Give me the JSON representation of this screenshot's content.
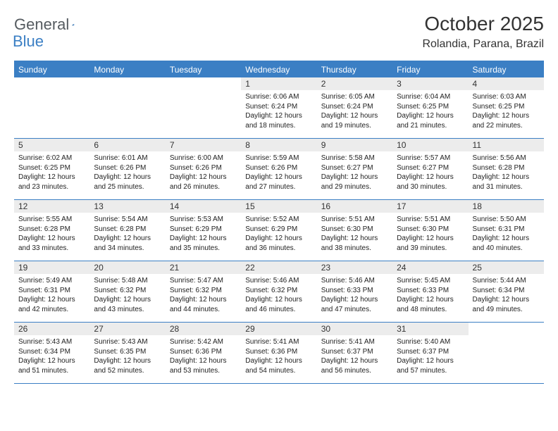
{
  "logo": {
    "part1": "General",
    "part2": "Blue"
  },
  "title": "October 2025",
  "location": "Rolandia, Parana, Brazil",
  "colors": {
    "accent": "#3b7fc4",
    "daynum_bg": "#ececec",
    "text": "#333333",
    "body_text": "#222222",
    "logo_gray": "#555b60",
    "background": "#ffffff"
  },
  "typography": {
    "title_fontsize": 28,
    "location_fontsize": 16,
    "dayname_fontsize": 12,
    "daynum_fontsize": 12,
    "body_fontsize": 10
  },
  "daynames": [
    "Sunday",
    "Monday",
    "Tuesday",
    "Wednesday",
    "Thursday",
    "Friday",
    "Saturday"
  ],
  "weeks": [
    [
      {
        "blank": true
      },
      {
        "blank": true
      },
      {
        "blank": true
      },
      {
        "day": "1",
        "sunrise": "Sunrise: 6:06 AM",
        "sunset": "Sunset: 6:24 PM",
        "daylight1": "Daylight: 12 hours",
        "daylight2": "and 18 minutes."
      },
      {
        "day": "2",
        "sunrise": "Sunrise: 6:05 AM",
        "sunset": "Sunset: 6:24 PM",
        "daylight1": "Daylight: 12 hours",
        "daylight2": "and 19 minutes."
      },
      {
        "day": "3",
        "sunrise": "Sunrise: 6:04 AM",
        "sunset": "Sunset: 6:25 PM",
        "daylight1": "Daylight: 12 hours",
        "daylight2": "and 21 minutes."
      },
      {
        "day": "4",
        "sunrise": "Sunrise: 6:03 AM",
        "sunset": "Sunset: 6:25 PM",
        "daylight1": "Daylight: 12 hours",
        "daylight2": "and 22 minutes."
      }
    ],
    [
      {
        "day": "5",
        "sunrise": "Sunrise: 6:02 AM",
        "sunset": "Sunset: 6:25 PM",
        "daylight1": "Daylight: 12 hours",
        "daylight2": "and 23 minutes."
      },
      {
        "day": "6",
        "sunrise": "Sunrise: 6:01 AM",
        "sunset": "Sunset: 6:26 PM",
        "daylight1": "Daylight: 12 hours",
        "daylight2": "and 25 minutes."
      },
      {
        "day": "7",
        "sunrise": "Sunrise: 6:00 AM",
        "sunset": "Sunset: 6:26 PM",
        "daylight1": "Daylight: 12 hours",
        "daylight2": "and 26 minutes."
      },
      {
        "day": "8",
        "sunrise": "Sunrise: 5:59 AM",
        "sunset": "Sunset: 6:26 PM",
        "daylight1": "Daylight: 12 hours",
        "daylight2": "and 27 minutes."
      },
      {
        "day": "9",
        "sunrise": "Sunrise: 5:58 AM",
        "sunset": "Sunset: 6:27 PM",
        "daylight1": "Daylight: 12 hours",
        "daylight2": "and 29 minutes."
      },
      {
        "day": "10",
        "sunrise": "Sunrise: 5:57 AM",
        "sunset": "Sunset: 6:27 PM",
        "daylight1": "Daylight: 12 hours",
        "daylight2": "and 30 minutes."
      },
      {
        "day": "11",
        "sunrise": "Sunrise: 5:56 AM",
        "sunset": "Sunset: 6:28 PM",
        "daylight1": "Daylight: 12 hours",
        "daylight2": "and 31 minutes."
      }
    ],
    [
      {
        "day": "12",
        "sunrise": "Sunrise: 5:55 AM",
        "sunset": "Sunset: 6:28 PM",
        "daylight1": "Daylight: 12 hours",
        "daylight2": "and 33 minutes."
      },
      {
        "day": "13",
        "sunrise": "Sunrise: 5:54 AM",
        "sunset": "Sunset: 6:28 PM",
        "daylight1": "Daylight: 12 hours",
        "daylight2": "and 34 minutes."
      },
      {
        "day": "14",
        "sunrise": "Sunrise: 5:53 AM",
        "sunset": "Sunset: 6:29 PM",
        "daylight1": "Daylight: 12 hours",
        "daylight2": "and 35 minutes."
      },
      {
        "day": "15",
        "sunrise": "Sunrise: 5:52 AM",
        "sunset": "Sunset: 6:29 PM",
        "daylight1": "Daylight: 12 hours",
        "daylight2": "and 36 minutes."
      },
      {
        "day": "16",
        "sunrise": "Sunrise: 5:51 AM",
        "sunset": "Sunset: 6:30 PM",
        "daylight1": "Daylight: 12 hours",
        "daylight2": "and 38 minutes."
      },
      {
        "day": "17",
        "sunrise": "Sunrise: 5:51 AM",
        "sunset": "Sunset: 6:30 PM",
        "daylight1": "Daylight: 12 hours",
        "daylight2": "and 39 minutes."
      },
      {
        "day": "18",
        "sunrise": "Sunrise: 5:50 AM",
        "sunset": "Sunset: 6:31 PM",
        "daylight1": "Daylight: 12 hours",
        "daylight2": "and 40 minutes."
      }
    ],
    [
      {
        "day": "19",
        "sunrise": "Sunrise: 5:49 AM",
        "sunset": "Sunset: 6:31 PM",
        "daylight1": "Daylight: 12 hours",
        "daylight2": "and 42 minutes."
      },
      {
        "day": "20",
        "sunrise": "Sunrise: 5:48 AM",
        "sunset": "Sunset: 6:32 PM",
        "daylight1": "Daylight: 12 hours",
        "daylight2": "and 43 minutes."
      },
      {
        "day": "21",
        "sunrise": "Sunrise: 5:47 AM",
        "sunset": "Sunset: 6:32 PM",
        "daylight1": "Daylight: 12 hours",
        "daylight2": "and 44 minutes."
      },
      {
        "day": "22",
        "sunrise": "Sunrise: 5:46 AM",
        "sunset": "Sunset: 6:32 PM",
        "daylight1": "Daylight: 12 hours",
        "daylight2": "and 46 minutes."
      },
      {
        "day": "23",
        "sunrise": "Sunrise: 5:46 AM",
        "sunset": "Sunset: 6:33 PM",
        "daylight1": "Daylight: 12 hours",
        "daylight2": "and 47 minutes."
      },
      {
        "day": "24",
        "sunrise": "Sunrise: 5:45 AM",
        "sunset": "Sunset: 6:33 PM",
        "daylight1": "Daylight: 12 hours",
        "daylight2": "and 48 minutes."
      },
      {
        "day": "25",
        "sunrise": "Sunrise: 5:44 AM",
        "sunset": "Sunset: 6:34 PM",
        "daylight1": "Daylight: 12 hours",
        "daylight2": "and 49 minutes."
      }
    ],
    [
      {
        "day": "26",
        "sunrise": "Sunrise: 5:43 AM",
        "sunset": "Sunset: 6:34 PM",
        "daylight1": "Daylight: 12 hours",
        "daylight2": "and 51 minutes."
      },
      {
        "day": "27",
        "sunrise": "Sunrise: 5:43 AM",
        "sunset": "Sunset: 6:35 PM",
        "daylight1": "Daylight: 12 hours",
        "daylight2": "and 52 minutes."
      },
      {
        "day": "28",
        "sunrise": "Sunrise: 5:42 AM",
        "sunset": "Sunset: 6:36 PM",
        "daylight1": "Daylight: 12 hours",
        "daylight2": "and 53 minutes."
      },
      {
        "day": "29",
        "sunrise": "Sunrise: 5:41 AM",
        "sunset": "Sunset: 6:36 PM",
        "daylight1": "Daylight: 12 hours",
        "daylight2": "and 54 minutes."
      },
      {
        "day": "30",
        "sunrise": "Sunrise: 5:41 AM",
        "sunset": "Sunset: 6:37 PM",
        "daylight1": "Daylight: 12 hours",
        "daylight2": "and 56 minutes."
      },
      {
        "day": "31",
        "sunrise": "Sunrise: 5:40 AM",
        "sunset": "Sunset: 6:37 PM",
        "daylight1": "Daylight: 12 hours",
        "daylight2": "and 57 minutes."
      },
      {
        "blank": true
      }
    ]
  ]
}
